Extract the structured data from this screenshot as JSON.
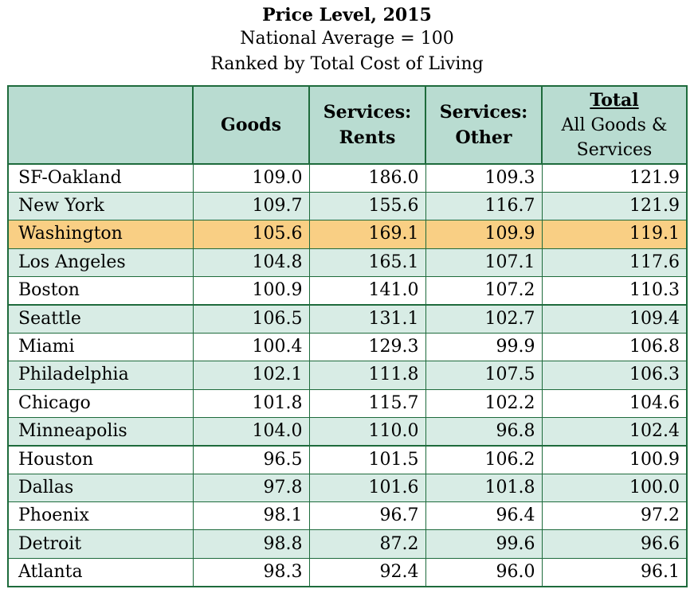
{
  "header": {
    "title": "Price Level, 2015",
    "subtitle_1": "National Average = 100",
    "subtitle_2": "Ranked by Total Cost of Living"
  },
  "table": {
    "columns": {
      "goods": "Goods",
      "rents_1": "Services:",
      "rents_2": "Rents",
      "other_1": "Services:",
      "other_2": "Other",
      "total_word": "Total",
      "total_1": "All Goods &",
      "total_2": "Services"
    },
    "rows": [
      {
        "city": "SF-Oakland",
        "goods": "109.0",
        "rents": "186.0",
        "other": "109.3",
        "total": "121.9"
      },
      {
        "city": "New York",
        "goods": "109.7",
        "rents": "155.6",
        "other": "116.7",
        "total": "121.9"
      },
      {
        "city": "Washington",
        "goods": "105.6",
        "rents": "169.1",
        "other": "109.9",
        "total": "119.1"
      },
      {
        "city": "Los Angeles",
        "goods": "104.8",
        "rents": "165.1",
        "other": "107.1",
        "total": "117.6"
      },
      {
        "city": "Boston",
        "goods": "100.9",
        "rents": "141.0",
        "other": "107.2",
        "total": "110.3"
      },
      {
        "city": "Seattle",
        "goods": "106.5",
        "rents": "131.1",
        "other": "102.7",
        "total": "109.4"
      },
      {
        "city": "Miami",
        "goods": "100.4",
        "rents": "129.3",
        "other": "99.9",
        "total": "106.8"
      },
      {
        "city": "Philadelphia",
        "goods": "102.1",
        "rents": "111.8",
        "other": "107.5",
        "total": "106.3"
      },
      {
        "city": "Chicago",
        "goods": "101.8",
        "rents": "115.7",
        "other": "102.2",
        "total": "104.6"
      },
      {
        "city": "Minneapolis",
        "goods": "104.0",
        "rents": "110.0",
        "other": "96.8",
        "total": "102.4"
      },
      {
        "city": "Houston",
        "goods": "96.5",
        "rents": "101.5",
        "other": "106.2",
        "total": "100.9"
      },
      {
        "city": "Dallas",
        "goods": "97.8",
        "rents": "101.6",
        "other": "101.8",
        "total": "100.0"
      },
      {
        "city": "Phoenix",
        "goods": "98.1",
        "rents": "96.7",
        "other": "96.4",
        "total": "97.2"
      },
      {
        "city": "Detroit",
        "goods": "98.8",
        "rents": "87.2",
        "other": "99.6",
        "total": "96.6"
      },
      {
        "city": "Atlanta",
        "goods": "98.3",
        "rents": "92.4",
        "other": "96.0",
        "total": "96.1"
      }
    ]
  },
  "colors": {
    "border": "#1e6b3c",
    "header_bg": "#b9dcd1",
    "shaded_row": "#d8ece5",
    "highlight_row": "#f9cf84"
  }
}
